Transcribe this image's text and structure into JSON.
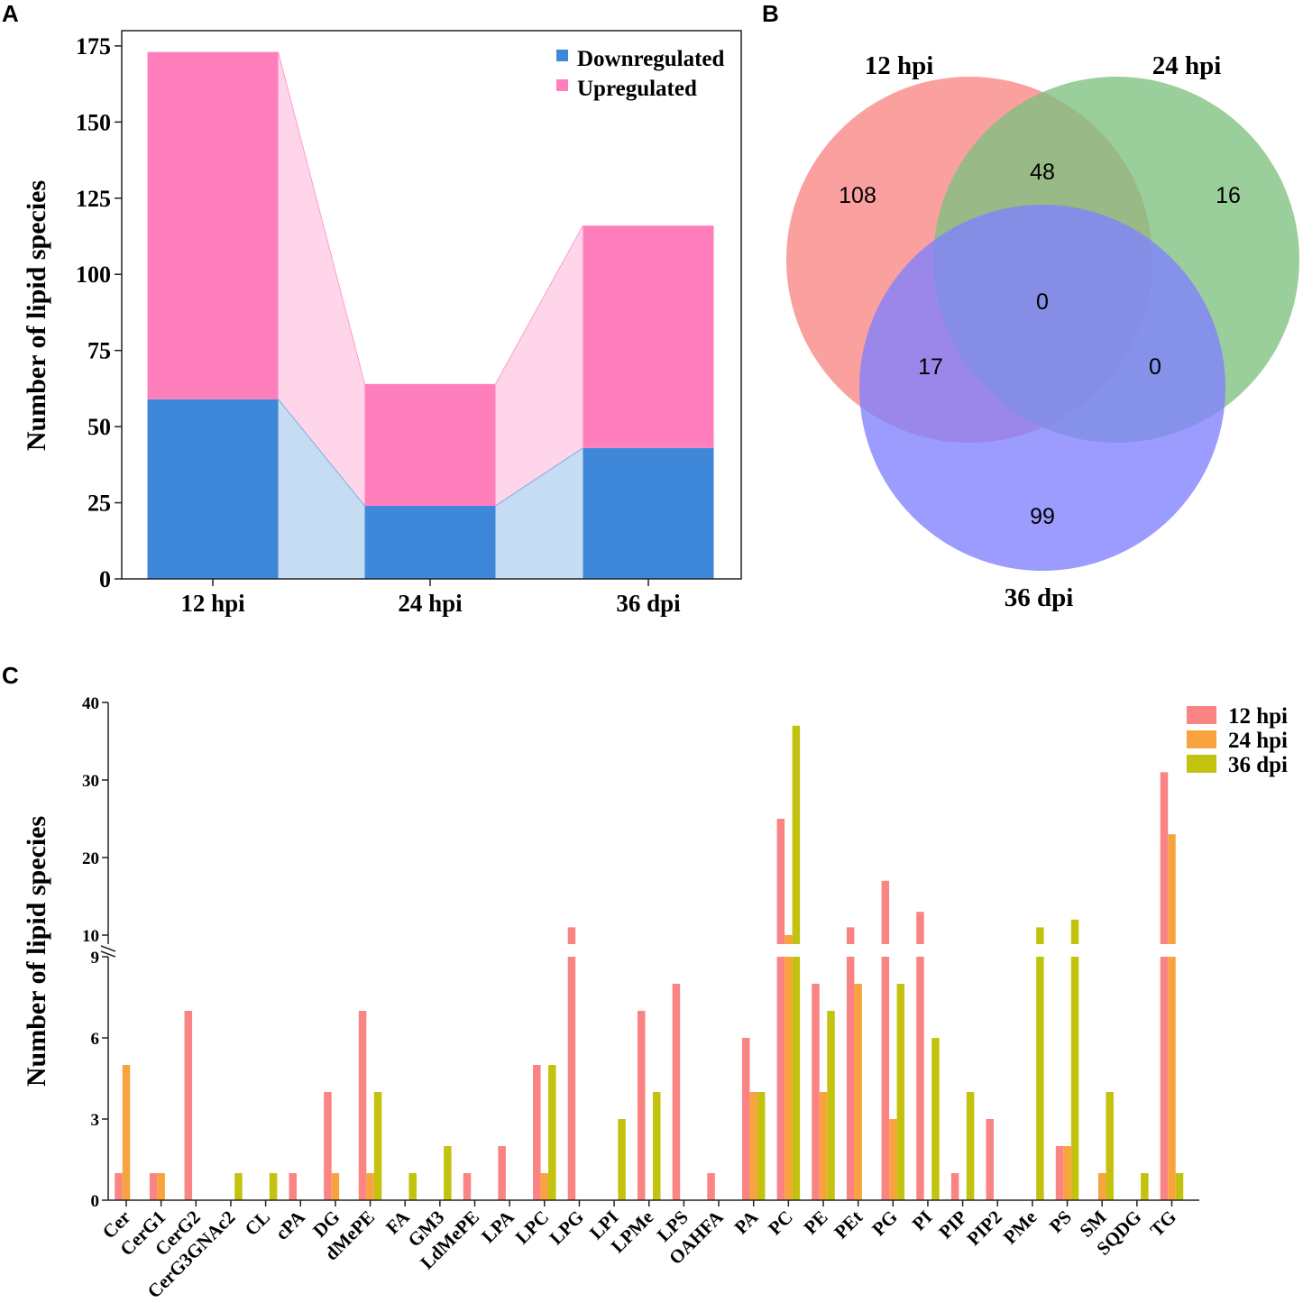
{
  "panels": {
    "a": "A",
    "b": "B",
    "c": "C"
  },
  "chart_data": [
    {
      "type": "bar",
      "stacked": true,
      "categories": [
        "12 hpi",
        "24 hpi",
        "36 dpi"
      ],
      "series": [
        {
          "name": "Downregulated",
          "values": [
            59,
            24,
            43
          ],
          "color": "#3f88d9"
        },
        {
          "name": "Upregulated",
          "values": [
            114,
            40,
            73
          ],
          "color": "#ff7fbd"
        }
      ],
      "ylabel": "Number of lipid species",
      "yticks": [
        0,
        25,
        50,
        75,
        100,
        125,
        150,
        175
      ],
      "ylim": [
        0,
        180
      ],
      "legend_position": "top-right"
    },
    {
      "type": "venn",
      "sets": [
        {
          "name": "12 hpi",
          "color": "#f98684"
        },
        {
          "name": "24 hpi",
          "color": "#7dc07f"
        },
        {
          "name": "36 dpi",
          "color": "#8080ff"
        }
      ],
      "regions": [
        {
          "sets": [
            "12 hpi"
          ],
          "value": 108
        },
        {
          "sets": [
            "24 hpi"
          ],
          "value": 16
        },
        {
          "sets": [
            "36 dpi"
          ],
          "value": 99
        },
        {
          "sets": [
            "12 hpi",
            "24 hpi"
          ],
          "value": 48
        },
        {
          "sets": [
            "12 hpi",
            "36 dpi"
          ],
          "value": 17
        },
        {
          "sets": [
            "24 hpi",
            "36 dpi"
          ],
          "value": 0
        },
        {
          "sets": [
            "12 hpi",
            "24 hpi",
            "36 dpi"
          ],
          "value": 0
        }
      ]
    },
    {
      "type": "bar",
      "grouped": true,
      "broken_axis": {
        "lower": [
          0,
          9
        ],
        "upper": [
          9,
          40
        ]
      },
      "categories": [
        "Cer",
        "CerG1",
        "CerG2",
        "CerG3GNAc2",
        "CL",
        "cPA",
        "DG",
        "dMePE",
        "FA",
        "GM3",
        "LdMePE",
        "LPA",
        "LPC",
        "LPG",
        "LPI",
        "LPMe",
        "LPS",
        "OAHFA",
        "PA",
        "PC",
        "PE",
        "PEt",
        "PG",
        "PI",
        "PIP",
        "PIP2",
        "PMe",
        "PS",
        "SM",
        "SQDG",
        "TG"
      ],
      "series": [
        {
          "name": "12 hpi",
          "color": "#fa8383",
          "values": [
            1,
            1,
            7,
            0,
            0,
            1,
            4,
            7,
            0,
            0,
            1,
            2,
            5,
            11,
            0,
            7,
            8,
            1,
            6,
            25,
            8,
            11,
            17,
            13,
            1,
            3,
            0,
            2,
            0,
            0,
            31
          ]
        },
        {
          "name": "24 hpi",
          "color": "#f9a33f",
          "values": [
            5,
            1,
            0,
            0,
            0,
            0,
            1,
            1,
            0,
            0,
            0,
            0,
            1,
            0,
            0,
            0,
            0,
            0,
            4,
            10,
            4,
            8,
            3,
            0,
            0,
            0,
            0,
            2,
            1,
            0,
            23
          ]
        },
        {
          "name": "36 dpi",
          "color": "#c3c20e",
          "values": [
            0,
            0,
            0,
            1,
            1,
            0,
            0,
            4,
            1,
            2,
            0,
            0,
            5,
            0,
            3,
            4,
            0,
            0,
            4,
            37,
            7,
            0,
            8,
            6,
            4,
            0,
            11,
            12,
            4,
            1,
            1
          ]
        }
      ],
      "ylabel": "Number of lipid species",
      "yticks_lower": [
        0,
        3,
        6,
        9
      ],
      "yticks_upper": [
        10,
        20,
        30,
        40
      ],
      "legend_position": "top-right"
    }
  ]
}
